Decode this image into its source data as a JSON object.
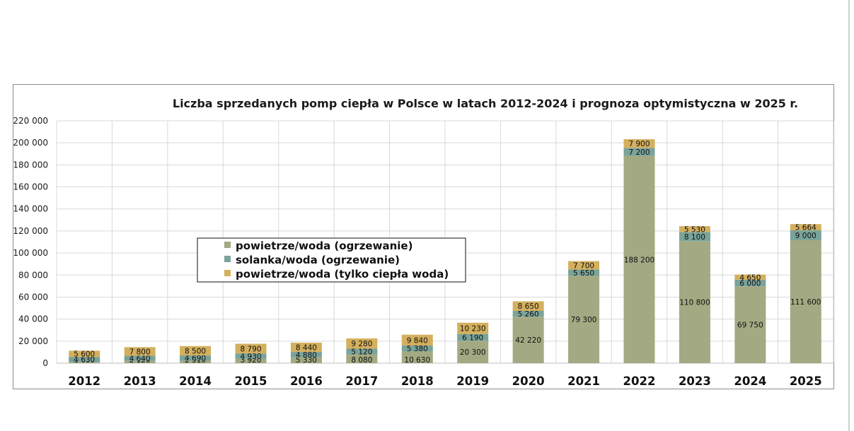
{
  "chart_data": {
    "type": "bar",
    "stacked": true,
    "title": "Liczba sprzedanych pomp ciepła w Polsce w latach 2012-2024 i  prognoza optymistyczna w 2025 r.",
    "xlabel": "",
    "ylabel": "",
    "ylim": [
      0,
      220000
    ],
    "yticks": [
      0,
      20000,
      40000,
      60000,
      80000,
      100000,
      120000,
      140000,
      160000,
      180000,
      200000,
      220000
    ],
    "ytick_labels": [
      "0",
      "20 000",
      "40 000",
      "60 000",
      "80 000",
      "100 000",
      "120 000",
      "140 000",
      "160 000",
      "180 000",
      "200 000",
      "220 000"
    ],
    "grid": true,
    "legend_position": "center-left",
    "categories": [
      "2012",
      "2013",
      "2014",
      "2015",
      "2016",
      "2017",
      "2018",
      "2019",
      "2020",
      "2021",
      "2022",
      "2023",
      "2024",
      "2025"
    ],
    "series": [
      {
        "name": "powietrze/woda (ogrzewanie)",
        "color": "#a3a982",
        "values": [
          1080,
          2120,
          2310,
          3920,
          5330,
          8080,
          10630,
          20300,
          42220,
          79300,
          188200,
          110800,
          69750,
          111600
        ],
        "labels": [
          "1 080",
          "2 120",
          "2 310",
          "3 920",
          "5 330",
          "8 080",
          "10 630",
          "20 300",
          "42 220",
          "79 300",
          "188 200",
          "110 800",
          "69 750",
          "111 600"
        ]
      },
      {
        "name": "solanka/woda (ogrzewanie)",
        "color": "#7aa39a",
        "values": [
          4630,
          4640,
          4690,
          4930,
          4880,
          5120,
          5380,
          6190,
          5260,
          5650,
          7200,
          8100,
          6000,
          9000
        ],
        "labels": [
          "4 630",
          "4 640",
          "4 690",
          "4 930",
          "4 880",
          "5 120",
          "5 380",
          "6 190",
          "5 260",
          "5 650",
          "7 200",
          "8 100",
          "6 000",
          "9 000"
        ]
      },
      {
        "name": "powietrze/woda (tylko ciepła woda)",
        "color": "#d4b05e",
        "values": [
          5600,
          7800,
          8500,
          8790,
          8440,
          9280,
          9840,
          10230,
          8650,
          7700,
          7900,
          5530,
          4650,
          5664
        ],
        "labels": [
          "5 600",
          "7 800",
          "8 500",
          "8 790",
          "8 440",
          "9 280",
          "9 840",
          "10 230",
          "8 650",
          "7 700",
          "7 900",
          "5 530",
          "4 650",
          "5 664"
        ]
      }
    ],
    "forecast_label_color": "#1f6fb2"
  }
}
